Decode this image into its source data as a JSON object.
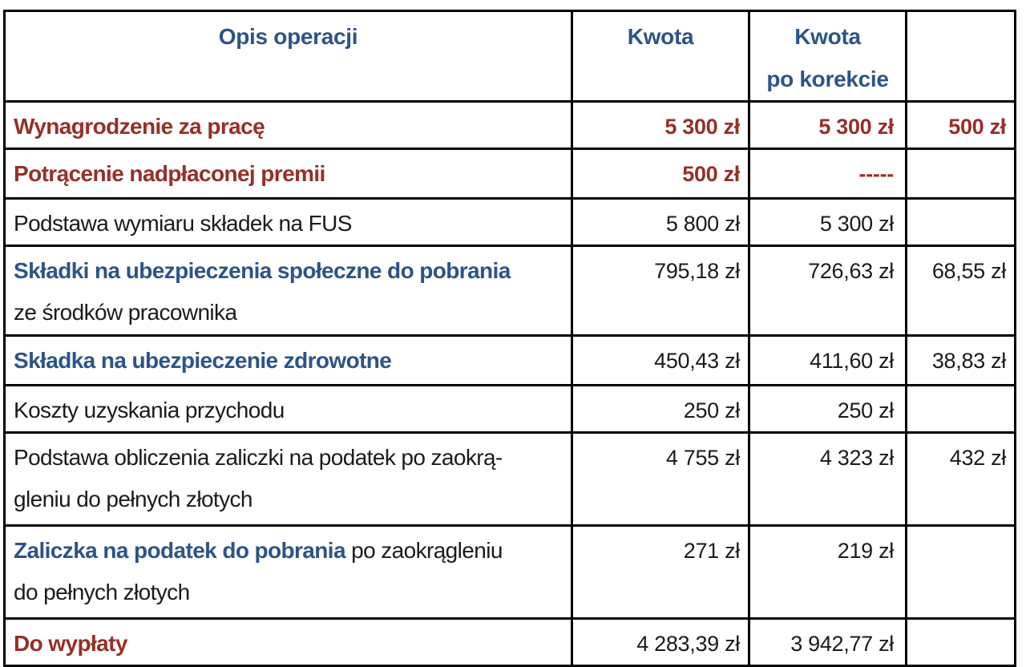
{
  "colors": {
    "blue": "#2c5488",
    "red": "#962f28",
    "black": "#1b1b1b",
    "border": "#000000",
    "background": "#ffffff"
  },
  "header": {
    "opis": "Opis operacji",
    "kwota": "Kwota",
    "korekta_line1": "Kwota",
    "korekta_line2": "po korekcie",
    "extra": ""
  },
  "rows": [
    {
      "parts": [
        {
          "text": "Wynagrodzenie za pracę",
          "style": "red"
        }
      ],
      "kwota": "5 300 zł",
      "korekta": "5 300 zł",
      "extra": "500 zł",
      "amount_style": "red"
    },
    {
      "parts": [
        {
          "text": "Potrącenie nadpłaconej premii",
          "style": "red"
        }
      ],
      "kwota": "500 zł",
      "korekta": "-----",
      "extra": "",
      "amount_style": "red"
    },
    {
      "parts": [
        {
          "text": "Podstawa wymiaru składek na FUS",
          "style": "black"
        }
      ],
      "kwota": "5 800 zł",
      "korekta": "5 300 zł",
      "extra": "",
      "amount_style": "black"
    },
    {
      "parts": [
        {
          "text": "Składki na ubezpieczenia społeczne do pobrania",
          "style": "blue"
        },
        {
          "text": "ze środków pracownika",
          "style": "black",
          "break": true
        }
      ],
      "kwota": "795,18 zł",
      "korekta": "726,63 zł",
      "extra": "68,55 zł",
      "amount_style": "black"
    },
    {
      "parts": [
        {
          "text": "Składka na ubezpieczenie zdrowotne",
          "style": "blue"
        }
      ],
      "kwota": "450,43 zł",
      "korekta": "411,60 zł",
      "extra": "38,83 zł",
      "amount_style": "black"
    },
    {
      "parts": [
        {
          "text": "Koszty uzyskania przychodu",
          "style": "black"
        }
      ],
      "kwota": "250 zł",
      "korekta": "250 zł",
      "extra": "",
      "amount_style": "black"
    },
    {
      "parts": [
        {
          "text": "Podstawa obliczenia zaliczki na podatek po zaokrą-",
          "style": "black"
        },
        {
          "text": "gleniu do pełnych złotych",
          "style": "black",
          "break": true
        }
      ],
      "kwota": "4 755 zł",
      "korekta": "4 323 zł",
      "extra": "432 zł",
      "amount_style": "black"
    },
    {
      "parts": [
        {
          "text": "Zaliczka na podatek do pobrania",
          "style": "blue"
        },
        {
          "text": " po zaokrągleniu",
          "style": "black"
        },
        {
          "text": "do pełnych złotych",
          "style": "black",
          "break": true
        }
      ],
      "kwota": "271 zł",
      "korekta": "219 zł",
      "extra": "",
      "amount_style": "black"
    },
    {
      "parts": [
        {
          "text": "Do wypłaty",
          "style": "red"
        }
      ],
      "kwota": "4 283,39 zł",
      "korekta": "3 942,77 zł",
      "extra": "",
      "amount_style": "black"
    }
  ]
}
